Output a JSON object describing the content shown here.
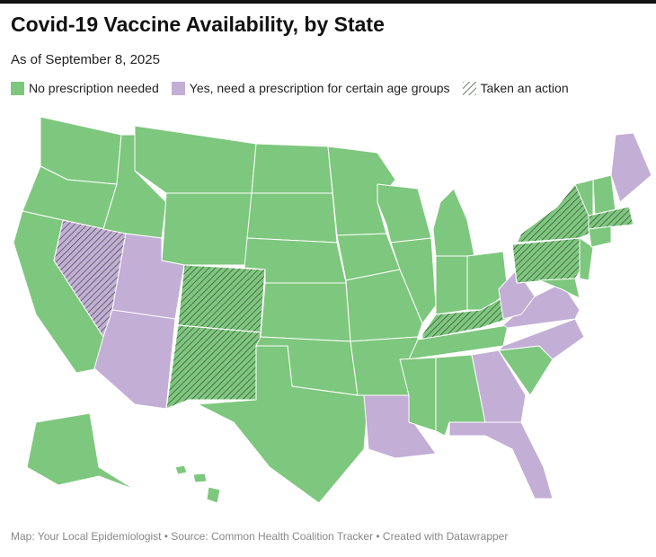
{
  "header": {
    "title": "Covid-19 Vaccine Availability, by State",
    "subtitle": "As of September 8, 2025"
  },
  "legend": [
    {
      "label": "No prescription needed",
      "color": "#7ec77e"
    },
    {
      "label": "Yes, need a prescription for certain age groups",
      "color": "#c3aed6"
    },
    {
      "label": "Taken an action",
      "color": "#3a4a3a"
    }
  ],
  "footer": "Map: Your Local Epidemiologist • Source: Common Health Coalition Tracker • Created with Datawrapper"
}
